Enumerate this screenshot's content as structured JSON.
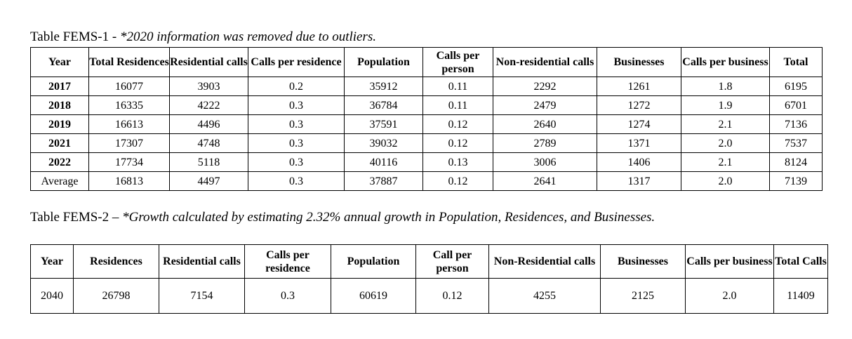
{
  "table1": {
    "caption_prefix": "Table FEMS-1 - ",
    "caption_note": "*2020 information was removed due to outliers.",
    "headers": [
      "Year",
      "Total Residences",
      "Residential calls",
      "Calls per residence",
      "Population",
      "Calls per person",
      "Non-residential calls",
      "Businesses",
      "Calls per business",
      "Total"
    ],
    "rows": [
      [
        "2017",
        "16077",
        "3903",
        "0.2",
        "35912",
        "0.11",
        "2292",
        "1261",
        "1.8",
        "6195"
      ],
      [
        "2018",
        "16335",
        "4222",
        "0.3",
        "36784",
        "0.11",
        "2479",
        "1272",
        "1.9",
        "6701"
      ],
      [
        "2019",
        "16613",
        "4496",
        "0.3",
        "37591",
        "0.12",
        "2640",
        "1274",
        "2.1",
        "7136"
      ],
      [
        "2021",
        "17307",
        "4748",
        "0.3",
        "39032",
        "0.12",
        "2789",
        "1371",
        "2.0",
        "7537"
      ],
      [
        "2022",
        "17734",
        "5118",
        "0.3",
        "40116",
        "0.13",
        "3006",
        "1406",
        "2.1",
        "8124"
      ],
      [
        "Average",
        "16813",
        "4497",
        "0.3",
        "37887",
        "0.12",
        "2641",
        "1317",
        "2.0",
        "7139"
      ]
    ]
  },
  "table2": {
    "caption_prefix": "Table FEMS-2 – ",
    "caption_note": "*Growth calculated by estimating 2.32% annual growth in Population, Residences, and Businesses.",
    "headers": [
      "Year",
      "Residences",
      "Residential calls",
      "Calls per residence",
      "Population",
      "Call per person",
      "Non-Residential calls",
      "Businesses",
      "Calls per business",
      "Total Calls"
    ],
    "rows": [
      [
        "2040",
        "26798",
        "7154",
        "0.3",
        "60619",
        "0.12",
        "4255",
        "2125",
        "2.0",
        "11409"
      ]
    ]
  }
}
